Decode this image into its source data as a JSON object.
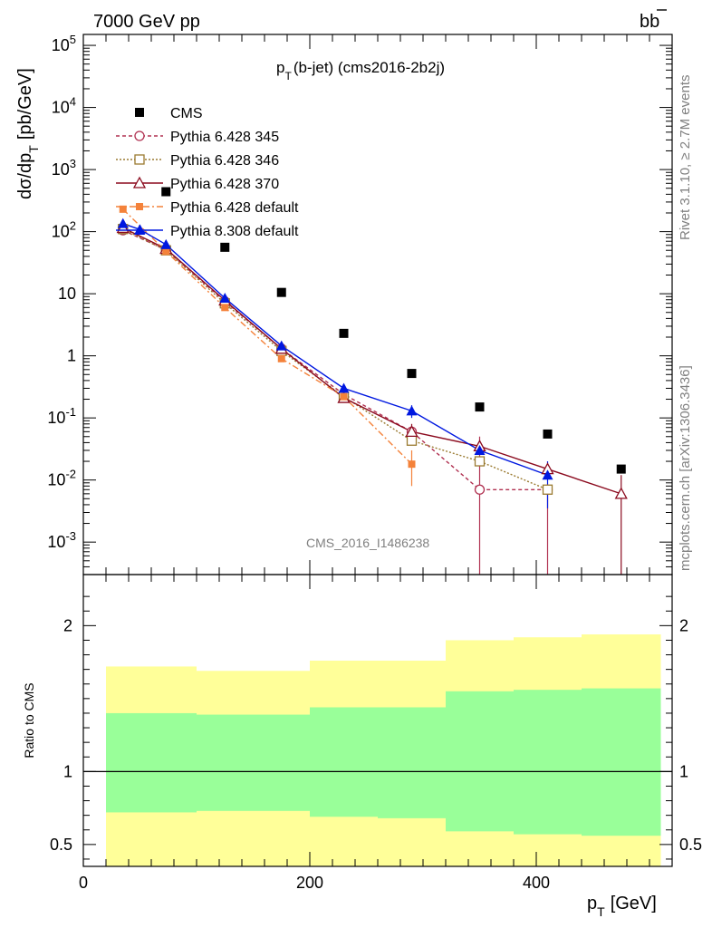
{
  "header": {
    "energy_label": "7000 GeV pp",
    "process_label_base": "b",
    "process_label_bar": "b",
    "plot_title_main": "p",
    "plot_title_sub": "T",
    "plot_title_rest": "(b-jet) (cms2016-2b2j)",
    "watermark": "CMS_2016_I1486238",
    "side_rivet": "Rivet 3.1.10, ≥ 2.7M events",
    "side_mcplots": "mcplots.cern.ch [arXiv:1306.3436]"
  },
  "axes": {
    "ylabel_main": "dσ/dp",
    "ylabel_main_sub": "T",
    "ylabel_main_unit": "[pb/GeV]",
    "ylabel_ratio": "Ratio to CMS",
    "xlabel_main": "p",
    "xlabel_sub": "T",
    "xlabel_unit": "[GeV]"
  },
  "colors": {
    "cms": "#000000",
    "p345": "#b03050",
    "p346": "#9a7a30",
    "p370": "#8b0a1e",
    "p6def": "#f4823a",
    "p8def": "#0018e0",
    "band_outer": "#ffff99",
    "band_inner": "#99ff99"
  },
  "legend": [
    {
      "key": "cms",
      "label": "CMS"
    },
    {
      "key": "p345",
      "label": "Pythia 6.428 345"
    },
    {
      "key": "p346",
      "label": "Pythia 6.428 346"
    },
    {
      "key": "p370",
      "label": "Pythia 6.428 370"
    },
    {
      "key": "p6def",
      "label": "Pythia 6.428 default"
    },
    {
      "key": "p8def",
      "label": "Pythia 8.308 default"
    }
  ],
  "chart_data": {
    "type": "scatter",
    "x_scale": "linear",
    "y_scale": "log",
    "xlim": [
      0,
      520
    ],
    "ylim": [
      0.0003,
      150000
    ],
    "ratio_ylim": [
      0.35,
      2.35
    ],
    "x_ticks": [
      "0",
      "200",
      "400"
    ],
    "y_ticks": [
      "10^-3",
      "10^-2",
      "10^-1",
      "1",
      "10",
      "10^2",
      "10^3",
      "10^4",
      "10^5"
    ],
    "ratio_ticks": [
      "0.5",
      "1",
      "2"
    ],
    "series": [
      {
        "key": "cms",
        "name": "CMS",
        "points": [
          [
            35,
            112
          ],
          [
            73,
            440
          ],
          [
            125,
            56
          ],
          [
            175,
            10.5
          ],
          [
            230,
            2.3
          ],
          [
            290,
            0.52
          ],
          [
            350,
            0.15
          ],
          [
            410,
            0.055
          ],
          [
            475,
            0.015
          ]
        ]
      },
      {
        "key": "p345",
        "name": "Pythia 6.428 345",
        "points": [
          [
            35,
            105
          ],
          [
            73,
            51
          ],
          [
            125,
            7.5
          ],
          [
            175,
            1.3
          ],
          [
            230,
            0.24
          ],
          [
            290,
            0.06
          ],
          [
            350,
            0.007
          ],
          [
            410,
            0.007
          ]
        ]
      },
      {
        "key": "p346",
        "name": "Pythia 6.428 346",
        "points": [
          [
            35,
            110
          ],
          [
            73,
            50
          ],
          [
            125,
            7.0
          ],
          [
            175,
            1.2
          ],
          [
            230,
            0.22
          ],
          [
            290,
            0.043
          ],
          [
            350,
            0.02
          ],
          [
            410,
            0.007
          ]
        ]
      },
      {
        "key": "p370",
        "name": "Pythia 6.428 370",
        "points": [
          [
            35,
            115
          ],
          [
            73,
            53
          ],
          [
            125,
            7.8
          ],
          [
            175,
            1.3
          ],
          [
            230,
            0.21
          ],
          [
            290,
            0.06
          ],
          [
            350,
            0.035
          ],
          [
            410,
            0.015
          ],
          [
            475,
            0.006
          ]
        ]
      },
      {
        "key": "p6def",
        "name": "Pythia 6.428 default",
        "points": [
          [
            35,
            230
          ],
          [
            73,
            48
          ],
          [
            125,
            6.0
          ],
          [
            175,
            0.9
          ],
          [
            230,
            0.22
          ],
          [
            290,
            0.018
          ]
        ]
      },
      {
        "key": "p8def",
        "name": "Pythia 8.308 default",
        "points": [
          [
            35,
            135
          ],
          [
            50,
            108
          ],
          [
            73,
            62
          ],
          [
            125,
            8.5
          ],
          [
            175,
            1.45
          ],
          [
            230,
            0.3
          ],
          [
            290,
            0.13
          ],
          [
            350,
            0.03
          ],
          [
            410,
            0.012
          ]
        ]
      }
    ],
    "ratio_bands": [
      {
        "x_range": [
          20,
          100
        ],
        "inner": [
          0.72,
          1.4
        ],
        "outer": [
          0.35,
          1.72
        ]
      },
      {
        "x_range": [
          100,
          200
        ],
        "inner": [
          0.73,
          1.39
        ],
        "outer": [
          0.35,
          1.69
        ]
      },
      {
        "x_range": [
          200,
          260
        ],
        "inner": [
          0.69,
          1.44
        ],
        "outer": [
          0.35,
          1.76
        ]
      },
      {
        "x_range": [
          260,
          320
        ],
        "inner": [
          0.68,
          1.44
        ],
        "outer": [
          0.35,
          1.76
        ]
      },
      {
        "x_range": [
          320,
          380
        ],
        "inner": [
          0.59,
          1.55
        ],
        "outer": [
          0.35,
          1.9
        ]
      },
      {
        "x_range": [
          380,
          440
        ],
        "inner": [
          0.57,
          1.56
        ],
        "outer": [
          0.35,
          1.92
        ]
      },
      {
        "x_range": [
          440,
          510
        ],
        "inner": [
          0.56,
          1.57
        ],
        "outer": [
          0.35,
          1.94
        ]
      }
    ]
  }
}
